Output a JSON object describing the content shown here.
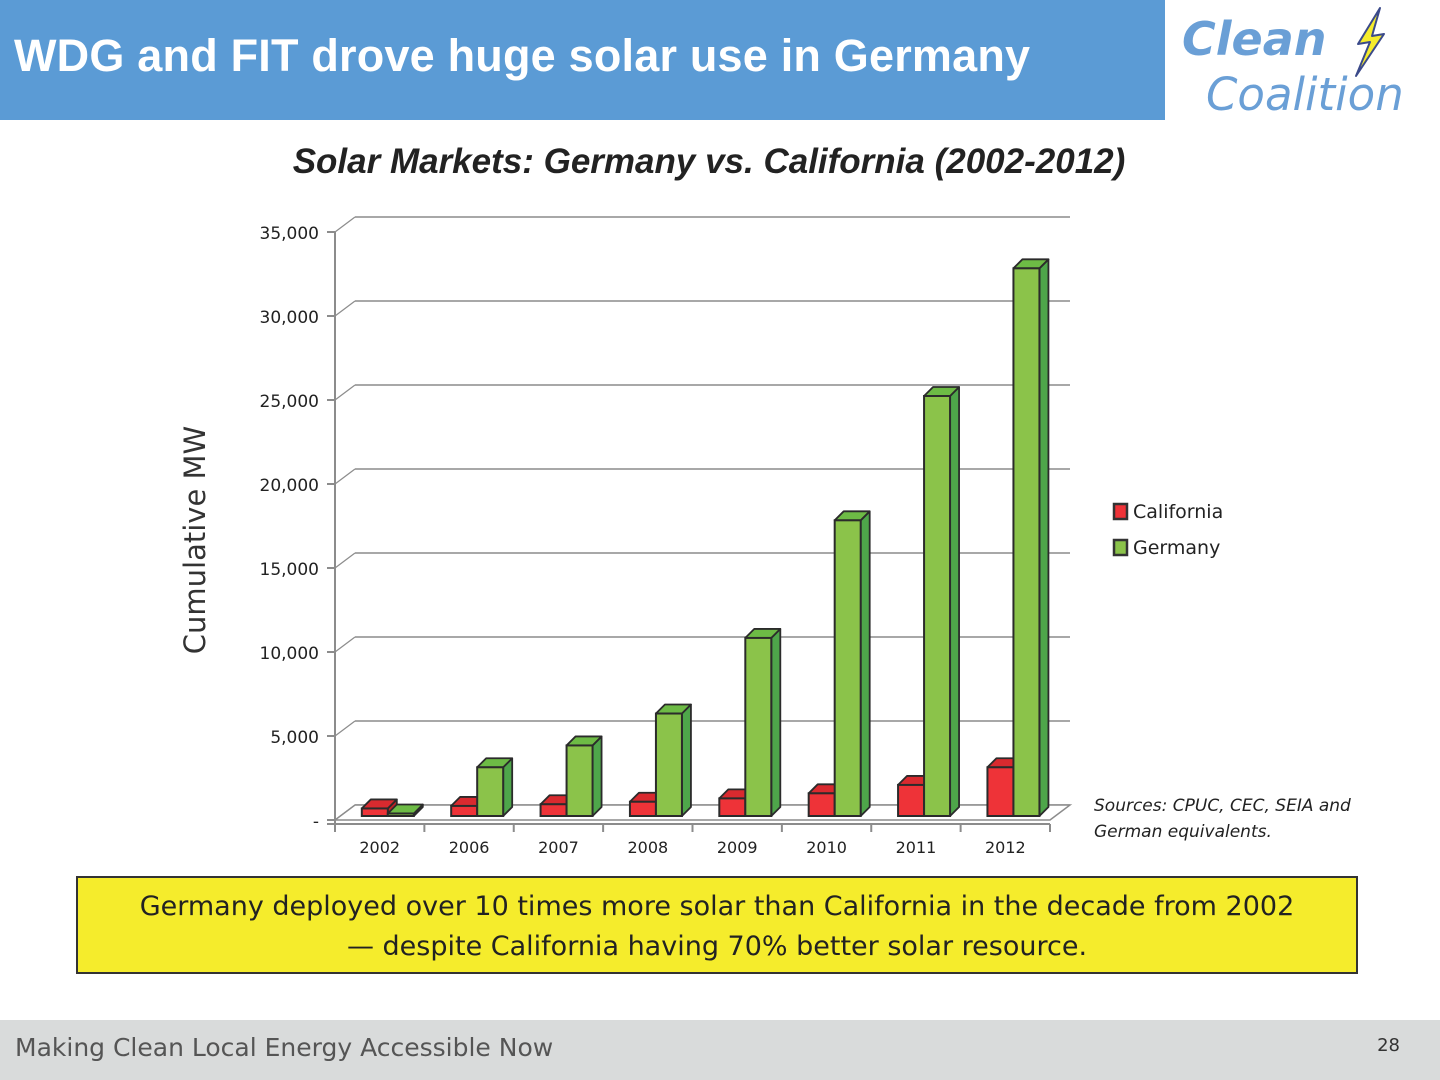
{
  "header": {
    "title": "WDG and FIT drove huge solar use in Germany",
    "brand_color": "#5b9bd5"
  },
  "logo": {
    "line1": "Clean",
    "line2": "Coalition",
    "icon": "lightning-bolt-icon",
    "color": "#6a9fd6",
    "bolt_color": "#f5ec2c"
  },
  "callout": {
    "line1": "Germany deployed over 10 times more solar than California in the decade from 2002",
    "line2": "— despite California having 70% better solar resource.",
    "background": "#f5ec2c"
  },
  "footer": {
    "tagline": "Making Clean Local Energy Accessible Now",
    "page_number": "28"
  },
  "chart_data": {
    "type": "bar",
    "style": "3d-clustered-column",
    "title": "Solar Markets: Germany vs. California (2002-2012)",
    "xlabel": "",
    "ylabel": "Cumulative MW",
    "ylim": [
      0,
      35000
    ],
    "yticks": [
      0,
      5000,
      10000,
      15000,
      20000,
      25000,
      30000,
      35000
    ],
    "ytick_labels": [
      "-",
      "5,000",
      "10,000",
      "15,000",
      "20,000",
      "25,000",
      "30,000",
      "35,000"
    ],
    "grid": true,
    "legend_position": "right",
    "categories": [
      "2002",
      "2006",
      "2007",
      "2008",
      "2009",
      "2010",
      "2011",
      "2012"
    ],
    "series": [
      {
        "name": "California",
        "color": "#ee3338",
        "side_color": "#c42227",
        "values": [
          450,
          600,
          700,
          850,
          1050,
          1350,
          1850,
          2900
        ]
      },
      {
        "name": "Germany",
        "color": "#8bc34a",
        "side_color": "#4ea64a",
        "values": [
          150,
          2900,
          4200,
          6100,
          10600,
          17600,
          25000,
          32600
        ]
      }
    ],
    "annotation": {
      "line1": "Sources:  CPUC, CEC, SEIA and",
      "line2": "German equivalents."
    }
  }
}
